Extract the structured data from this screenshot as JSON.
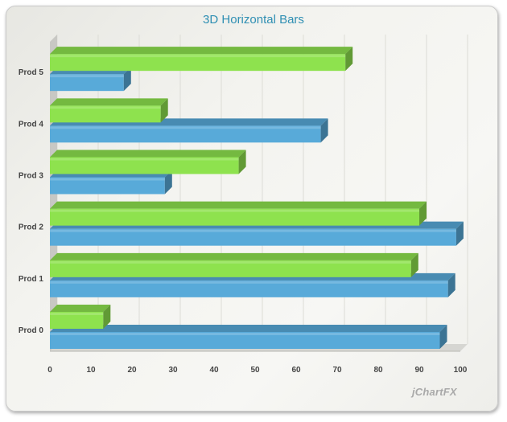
{
  "chart_data": {
    "type": "bar",
    "orientation": "horizontal",
    "style": "3d",
    "title": "3D Horizontal Bars",
    "categories": [
      "Prod 0",
      "Prod 1",
      "Prod 2",
      "Prod 3",
      "Prod 4",
      "Prod 5"
    ],
    "series": [
      {
        "values": [
          95,
          97,
          99,
          28,
          66,
          18
        ],
        "color": "#58aad9"
      },
      {
        "values": [
          13,
          88,
          90,
          46,
          27,
          72
        ],
        "color": "#8ee24e"
      }
    ],
    "xlim": [
      0,
      100
    ],
    "x_ticks": [
      0,
      10,
      20,
      30,
      40,
      50,
      60,
      70,
      80,
      90,
      100
    ],
    "grid": true,
    "legend": "none"
  },
  "watermark": "jChartFX"
}
